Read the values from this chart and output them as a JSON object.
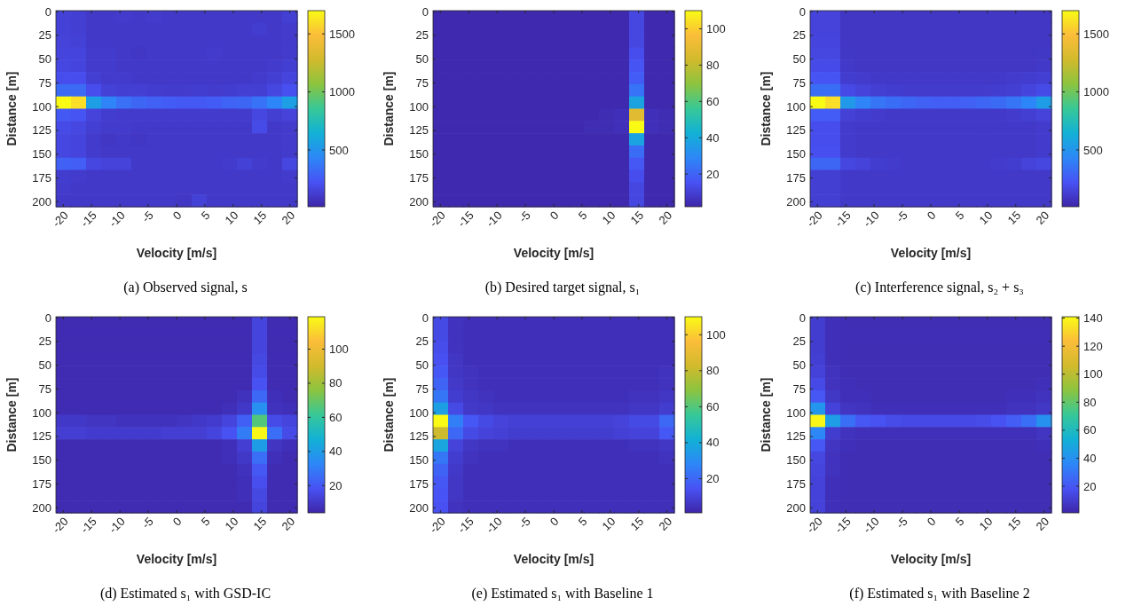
{
  "chart_data": [
    {
      "type": "heatmap",
      "title": "(a) Observed signal, s",
      "xlabel": "Velocity [m/s]",
      "ylabel": "Distance [m]",
      "xlim": [
        -21.3,
        21.3
      ],
      "xticks": [
        -20,
        -15,
        -10,
        -5,
        0,
        5,
        10,
        15,
        20
      ],
      "ylim": [
        205.3,
        -1
      ],
      "yticks": [
        0,
        25,
        50,
        75,
        100,
        125,
        150,
        175,
        200
      ],
      "clim": [
        11,
        1700
      ],
      "cticks": [
        500,
        1000,
        1500
      ],
      "cells": [
        [
          140,
          130,
          100,
          100,
          110,
          100,
          110,
          100,
          100,
          100,
          100,
          100,
          100,
          100,
          100,
          130
        ],
        [
          140,
          130,
          100,
          100,
          100,
          100,
          100,
          100,
          100,
          100,
          100,
          100,
          100,
          120,
          100,
          110
        ],
        [
          150,
          140,
          100,
          100,
          100,
          100,
          100,
          100,
          100,
          100,
          100,
          100,
          100,
          100,
          100,
          110
        ],
        [
          160,
          160,
          110,
          110,
          100,
          90,
          100,
          100,
          100,
          100,
          110,
          100,
          100,
          100,
          100,
          110
        ],
        [
          170,
          160,
          110,
          110,
          100,
          100,
          100,
          100,
          100,
          100,
          100,
          100,
          100,
          100,
          110,
          130
        ],
        [
          200,
          200,
          130,
          110,
          110,
          100,
          100,
          100,
          100,
          100,
          100,
          100,
          100,
          110,
          130,
          160
        ],
        [
          320,
          320,
          200,
          140,
          130,
          130,
          120,
          110,
          110,
          120,
          110,
          120,
          130,
          130,
          170,
          210
        ],
        [
          1700,
          1600,
          550,
          420,
          340,
          300,
          280,
          260,
          250,
          250,
          260,
          290,
          300,
          350,
          430,
          550
        ],
        [
          250,
          230,
          150,
          120,
          110,
          110,
          110,
          110,
          110,
          110,
          110,
          110,
          110,
          170,
          130,
          150
        ],
        [
          190,
          170,
          130,
          110,
          110,
          100,
          100,
          100,
          100,
          100,
          100,
          100,
          100,
          190,
          100,
          110
        ],
        [
          170,
          160,
          110,
          90,
          100,
          90,
          100,
          100,
          100,
          100,
          100,
          100,
          100,
          100,
          100,
          110
        ],
        [
          170,
          160,
          110,
          100,
          100,
          100,
          100,
          100,
          100,
          100,
          100,
          100,
          100,
          100,
          100,
          110
        ],
        [
          280,
          270,
          170,
          150,
          150,
          100,
          100,
          100,
          100,
          100,
          100,
          110,
          140,
          110,
          100,
          170
        ],
        [
          120,
          110,
          100,
          100,
          100,
          100,
          100,
          100,
          100,
          100,
          100,
          100,
          100,
          100,
          100,
          110
        ],
        [
          110,
          100,
          100,
          100,
          100,
          100,
          100,
          100,
          100,
          100,
          100,
          100,
          100,
          100,
          100,
          100
        ],
        [
          100,
          100,
          100,
          100,
          100,
          100,
          100,
          100,
          90,
          140,
          100,
          100,
          100,
          100,
          100,
          100
        ]
      ]
    },
    {
      "type": "heatmap",
      "title": "(b) Desired target signal, s₁",
      "xlabel": "Velocity [m/s]",
      "ylabel": "Distance [m]",
      "xlim": [
        -21.3,
        21.3
      ],
      "xticks": [
        -20,
        -15,
        -10,
        -5,
        0,
        5,
        10,
        15,
        20
      ],
      "ylim": [
        205.3,
        -1
      ],
      "yticks": [
        0,
        25,
        50,
        75,
        100,
        125,
        150,
        175,
        200
      ],
      "clim": [
        2,
        110
      ],
      "cticks": [
        20,
        40,
        60,
        80,
        100
      ],
      "cells": [
        [
          3,
          3,
          3,
          3,
          3,
          3,
          3,
          3,
          3,
          3,
          3,
          3,
          3,
          12,
          3,
          3
        ],
        [
          3,
          3,
          3,
          3,
          3,
          3,
          3,
          3,
          3,
          3,
          3,
          3,
          3,
          12,
          3,
          3
        ],
        [
          3,
          3,
          3,
          3,
          3,
          3,
          3,
          3,
          3,
          3,
          3,
          3,
          3,
          12,
          3,
          3
        ],
        [
          3,
          3,
          3,
          3,
          3,
          3,
          3,
          3,
          3,
          3,
          3,
          3,
          3,
          14,
          3,
          3
        ],
        [
          3,
          3,
          3,
          3,
          3,
          3,
          3,
          3,
          3,
          3,
          3,
          3,
          3,
          16,
          3,
          3
        ],
        [
          3,
          3,
          3,
          3,
          3,
          3,
          3,
          3,
          3,
          3,
          3,
          3,
          3,
          18,
          3,
          3
        ],
        [
          3,
          3,
          3,
          3,
          3,
          3,
          3,
          3,
          3,
          3,
          3,
          3,
          3,
          24,
          3,
          3
        ],
        [
          3,
          3,
          3,
          3,
          3,
          3,
          3,
          3,
          3,
          3,
          3,
          3,
          3,
          38,
          3,
          3
        ],
        [
          3,
          3,
          3,
          3,
          3,
          3,
          3,
          3,
          3,
          3,
          3,
          4,
          5,
          88,
          5,
          4
        ],
        [
          3,
          3,
          3,
          3,
          3,
          3,
          3,
          3,
          3,
          3,
          4,
          4,
          5,
          110,
          5,
          4
        ],
        [
          3,
          3,
          3,
          3,
          3,
          3,
          3,
          3,
          3,
          3,
          3,
          3,
          3,
          38,
          3,
          3
        ],
        [
          3,
          3,
          3,
          3,
          3,
          3,
          3,
          3,
          3,
          3,
          3,
          3,
          3,
          22,
          3,
          3
        ],
        [
          3,
          3,
          3,
          3,
          3,
          3,
          3,
          3,
          3,
          3,
          3,
          3,
          3,
          17,
          3,
          3
        ],
        [
          3,
          3,
          3,
          3,
          3,
          3,
          3,
          3,
          3,
          3,
          3,
          3,
          3,
          14,
          3,
          3
        ],
        [
          3,
          3,
          3,
          3,
          3,
          3,
          3,
          3,
          3,
          3,
          3,
          3,
          3,
          12,
          3,
          3
        ],
        [
          3,
          3,
          3,
          3,
          3,
          3,
          3,
          3,
          3,
          3,
          3,
          3,
          3,
          12,
          3,
          3
        ]
      ]
    },
    {
      "type": "heatmap",
      "title": "(c) Interference signal, s₂ + s₃",
      "xlabel": "Velocity [m/s]",
      "ylabel": "Distance [m]",
      "xlim": [
        -21.3,
        21.3
      ],
      "xticks": [
        -20,
        -15,
        -10,
        -5,
        0,
        5,
        10,
        15,
        20
      ],
      "ylim": [
        205.3,
        -1
      ],
      "yticks": [
        0,
        25,
        50,
        75,
        100,
        125,
        150,
        175,
        200
      ],
      "clim": [
        11,
        1700
      ],
      "cticks": [
        500,
        1000,
        1500
      ],
      "cells": [
        [
          150,
          150,
          90,
          90,
          90,
          90,
          90,
          90,
          90,
          90,
          90,
          90,
          90,
          90,
          90,
          90
        ],
        [
          150,
          150,
          90,
          90,
          90,
          90,
          90,
          90,
          90,
          90,
          90,
          90,
          90,
          90,
          90,
          90
        ],
        [
          160,
          160,
          90,
          90,
          90,
          90,
          90,
          90,
          90,
          90,
          90,
          90,
          90,
          90,
          90,
          90
        ],
        [
          170,
          170,
          95,
          90,
          90,
          90,
          90,
          90,
          90,
          90,
          90,
          90,
          90,
          90,
          90,
          95
        ],
        [
          190,
          190,
          100,
          90,
          90,
          90,
          90,
          90,
          90,
          90,
          90,
          90,
          90,
          90,
          90,
          100
        ],
        [
          230,
          230,
          120,
          110,
          100,
          100,
          100,
          100,
          100,
          100,
          100,
          100,
          100,
          110,
          120,
          130
        ],
        [
          330,
          330,
          180,
          150,
          130,
          120,
          110,
          110,
          110,
          110,
          110,
          110,
          120,
          130,
          160,
          190
        ],
        [
          1700,
          1600,
          520,
          420,
          360,
          330,
          300,
          280,
          270,
          270,
          280,
          300,
          320,
          360,
          430,
          540
        ],
        [
          260,
          260,
          140,
          120,
          110,
          100,
          100,
          100,
          100,
          100,
          100,
          100,
          100,
          110,
          130,
          150
        ],
        [
          200,
          200,
          110,
          100,
          100,
          100,
          100,
          100,
          100,
          100,
          100,
          100,
          100,
          100,
          100,
          110
        ],
        [
          200,
          200,
          110,
          100,
          100,
          100,
          100,
          100,
          100,
          100,
          100,
          100,
          100,
          100,
          100,
          110
        ],
        [
          210,
          210,
          110,
          100,
          100,
          100,
          100,
          100,
          100,
          100,
          100,
          100,
          100,
          100,
          100,
          110
        ],
        [
          300,
          300,
          170,
          150,
          120,
          110,
          100,
          100,
          100,
          100,
          100,
          100,
          110,
          120,
          150,
          170
        ],
        [
          130,
          130,
          100,
          100,
          100,
          100,
          100,
          100,
          100,
          100,
          100,
          100,
          100,
          100,
          100,
          100
        ],
        [
          130,
          130,
          100,
          100,
          100,
          100,
          100,
          100,
          100,
          100,
          100,
          100,
          100,
          100,
          100,
          100
        ],
        [
          130,
          130,
          100,
          100,
          100,
          100,
          100,
          100,
          100,
          100,
          100,
          100,
          100,
          100,
          100,
          100
        ]
      ]
    },
    {
      "type": "heatmap",
      "title": "(d) Estimated s₁ with GSD-IC",
      "xlabel": "Velocity [m/s]",
      "ylabel": "Distance [m]",
      "xlim": [
        -21.3,
        21.3
      ],
      "xticks": [
        -20,
        -15,
        -10,
        -5,
        0,
        5,
        10,
        15,
        20
      ],
      "ylim": [
        205.3,
        -1
      ],
      "yticks": [
        0,
        25,
        50,
        75,
        100,
        125,
        150,
        175,
        200
      ],
      "clim": [
        4,
        119
      ],
      "cticks": [
        20,
        40,
        60,
        80,
        100
      ],
      "cells": [
        [
          6,
          6,
          6,
          6,
          6,
          6,
          6,
          6,
          6,
          6,
          6,
          6,
          6,
          14,
          6,
          6
        ],
        [
          6,
          6,
          6,
          6,
          6,
          6,
          6,
          6,
          6,
          6,
          6,
          6,
          6,
          14,
          6,
          6
        ],
        [
          6,
          6,
          6,
          6,
          6,
          6,
          6,
          6,
          6,
          6,
          6,
          6,
          6,
          14,
          6,
          6
        ],
        [
          6,
          6,
          6,
          6,
          6,
          6,
          6,
          6,
          6,
          6,
          6,
          6,
          6,
          15,
          6,
          6
        ],
        [
          6,
          6,
          6,
          6,
          6,
          6,
          6,
          6,
          6,
          6,
          6,
          6,
          6,
          16,
          6,
          6
        ],
        [
          6,
          6,
          6,
          6,
          6,
          6,
          6,
          6,
          6,
          6,
          6,
          6,
          6,
          18,
          6,
          6
        ],
        [
          6,
          6,
          6,
          6,
          6,
          6,
          6,
          6,
          6,
          6,
          6,
          6,
          8,
          24,
          7,
          6
        ],
        [
          6,
          6,
          6,
          6,
          6,
          6,
          6,
          6,
          6,
          6,
          6,
          7,
          10,
          36,
          8,
          7
        ],
        [
          10,
          10,
          9,
          9,
          8,
          8,
          8,
          8,
          9,
          10,
          11,
          14,
          22,
          66,
          16,
          14
        ],
        [
          12,
          12,
          11,
          11,
          11,
          11,
          11,
          12,
          12,
          12,
          14,
          18,
          30,
          118,
          26,
          16
        ],
        [
          6,
          6,
          6,
          6,
          6,
          6,
          6,
          6,
          6,
          6,
          6,
          7,
          12,
          40,
          9,
          7
        ],
        [
          6,
          6,
          6,
          6,
          6,
          6,
          6,
          6,
          6,
          6,
          6,
          7,
          10,
          26,
          7,
          6
        ],
        [
          6,
          6,
          6,
          6,
          6,
          6,
          6,
          6,
          6,
          6,
          6,
          6,
          8,
          20,
          6,
          6
        ],
        [
          6,
          6,
          6,
          6,
          6,
          6,
          6,
          6,
          6,
          6,
          6,
          6,
          7,
          17,
          6,
          6
        ],
        [
          6,
          6,
          6,
          6,
          6,
          6,
          6,
          6,
          6,
          6,
          6,
          6,
          7,
          15,
          6,
          6
        ],
        [
          6,
          6,
          6,
          6,
          6,
          6,
          6,
          6,
          6,
          6,
          6,
          6,
          6,
          14,
          6,
          6
        ]
      ]
    },
    {
      "type": "heatmap",
      "title": "(e) Estimated s₁ with Baseline 1",
      "xlabel": "Velocity [m/s]",
      "ylabel": "Distance [m]",
      "xlim": [
        -21.3,
        21.3
      ],
      "xticks": [
        -20,
        -15,
        -10,
        -5,
        0,
        5,
        10,
        15,
        20
      ],
      "ylim": [
        205.3,
        -1
      ],
      "yticks": [
        0,
        25,
        50,
        75,
        100,
        125,
        150,
        175,
        200
      ],
      "clim": [
        1,
        110
      ],
      "cticks": [
        20,
        40,
        60,
        80,
        100
      ],
      "cells": [
        [
          12,
          5,
          4,
          4,
          4,
          4,
          4,
          4,
          4,
          4,
          4,
          4,
          4,
          4,
          4,
          4
        ],
        [
          12,
          5,
          4,
          4,
          4,
          4,
          4,
          4,
          4,
          4,
          4,
          4,
          4,
          4,
          4,
          4
        ],
        [
          13,
          5,
          4,
          4,
          4,
          4,
          4,
          4,
          4,
          4,
          4,
          4,
          4,
          4,
          4,
          4
        ],
        [
          14,
          6,
          4,
          4,
          4,
          4,
          4,
          4,
          4,
          4,
          4,
          4,
          4,
          4,
          4,
          4
        ],
        [
          16,
          6,
          5,
          4,
          4,
          4,
          4,
          4,
          4,
          4,
          4,
          4,
          4,
          4,
          4,
          5
        ],
        [
          19,
          7,
          5,
          4,
          4,
          4,
          4,
          4,
          4,
          4,
          4,
          4,
          4,
          4,
          4,
          5
        ],
        [
          24,
          8,
          6,
          5,
          4,
          4,
          4,
          4,
          4,
          4,
          4,
          4,
          4,
          5,
          5,
          6
        ],
        [
          36,
          12,
          7,
          6,
          5,
          5,
          5,
          5,
          5,
          5,
          5,
          5,
          5,
          6,
          6,
          8
        ],
        [
          110,
          26,
          16,
          12,
          10,
          9,
          9,
          9,
          9,
          9,
          9,
          9,
          10,
          12,
          12,
          20
        ],
        [
          82,
          20,
          12,
          10,
          9,
          8,
          8,
          8,
          8,
          8,
          8,
          8,
          9,
          10,
          10,
          16
        ],
        [
          38,
          10,
          6,
          5,
          5,
          4,
          4,
          4,
          4,
          4,
          4,
          4,
          4,
          5,
          5,
          6
        ],
        [
          24,
          8,
          5,
          4,
          4,
          4,
          4,
          4,
          4,
          4,
          4,
          4,
          4,
          4,
          4,
          5
        ],
        [
          19,
          7,
          4,
          4,
          4,
          4,
          4,
          4,
          4,
          4,
          4,
          4,
          4,
          4,
          4,
          4
        ],
        [
          16,
          6,
          4,
          4,
          4,
          4,
          4,
          4,
          4,
          4,
          4,
          4,
          4,
          4,
          4,
          4
        ],
        [
          15,
          6,
          4,
          4,
          4,
          4,
          4,
          4,
          4,
          4,
          4,
          4,
          4,
          4,
          4,
          4
        ],
        [
          14,
          5,
          4,
          4,
          4,
          4,
          4,
          4,
          4,
          4,
          4,
          4,
          4,
          4,
          4,
          4
        ]
      ]
    },
    {
      "type": "heatmap",
      "title": "(f) Estimated s₁ with Baseline 2",
      "xlabel": "Velocity [m/s]",
      "ylabel": "Distance [m]",
      "xlim": [
        -21.3,
        21.3
      ],
      "xticks": [
        -20,
        -15,
        -10,
        -5,
        0,
        5,
        10,
        15,
        20
      ],
      "ylim": [
        205.3,
        -1
      ],
      "yticks": [
        0,
        25,
        50,
        75,
        100,
        125,
        150,
        175,
        200
      ],
      "clim": [
        1,
        141
      ],
      "cticks": [
        20,
        40,
        60,
        80,
        100,
        120,
        140
      ],
      "cells": [
        [
          10,
          5,
          4,
          4,
          4,
          4,
          4,
          4,
          4,
          4,
          4,
          4,
          4,
          4,
          4,
          4
        ],
        [
          10,
          5,
          4,
          4,
          4,
          4,
          4,
          4,
          4,
          4,
          4,
          4,
          4,
          4,
          4,
          4
        ],
        [
          10,
          5,
          4,
          4,
          4,
          4,
          4,
          4,
          4,
          4,
          4,
          4,
          4,
          4,
          4,
          4
        ],
        [
          11,
          5,
          4,
          4,
          4,
          4,
          4,
          4,
          4,
          4,
          4,
          4,
          4,
          4,
          4,
          4
        ],
        [
          12,
          6,
          4,
          4,
          4,
          4,
          4,
          4,
          4,
          4,
          4,
          4,
          4,
          4,
          4,
          4
        ],
        [
          15,
          6,
          5,
          4,
          4,
          4,
          4,
          4,
          4,
          4,
          4,
          4,
          4,
          4,
          4,
          5
        ],
        [
          20,
          8,
          5,
          5,
          4,
          4,
          4,
          4,
          4,
          4,
          4,
          4,
          4,
          5,
          5,
          6
        ],
        [
          42,
          12,
          7,
          6,
          5,
          5,
          5,
          5,
          5,
          5,
          5,
          5,
          5,
          6,
          6,
          8
        ],
        [
          140,
          45,
          28,
          20,
          18,
          16,
          15,
          15,
          15,
          15,
          15,
          16,
          18,
          22,
          28,
          40
        ],
        [
          36,
          10,
          6,
          5,
          5,
          5,
          5,
          5,
          5,
          5,
          5,
          5,
          5,
          5,
          5,
          7
        ],
        [
          20,
          7,
          5,
          4,
          4,
          4,
          4,
          4,
          4,
          4,
          4,
          4,
          4,
          4,
          4,
          5
        ],
        [
          14,
          6,
          4,
          4,
          4,
          4,
          4,
          4,
          4,
          4,
          4,
          4,
          4,
          4,
          4,
          4
        ],
        [
          13,
          6,
          4,
          4,
          4,
          4,
          4,
          4,
          4,
          4,
          4,
          4,
          4,
          4,
          4,
          4
        ],
        [
          12,
          5,
          4,
          4,
          4,
          4,
          4,
          4,
          4,
          4,
          4,
          4,
          4,
          4,
          4,
          4
        ],
        [
          12,
          5,
          4,
          4,
          4,
          4,
          4,
          4,
          4,
          4,
          4,
          4,
          4,
          4,
          4,
          4
        ],
        [
          12,
          5,
          4,
          4,
          4,
          4,
          4,
          4,
          4,
          4,
          4,
          4,
          4,
          4,
          4,
          4
        ]
      ]
    }
  ]
}
